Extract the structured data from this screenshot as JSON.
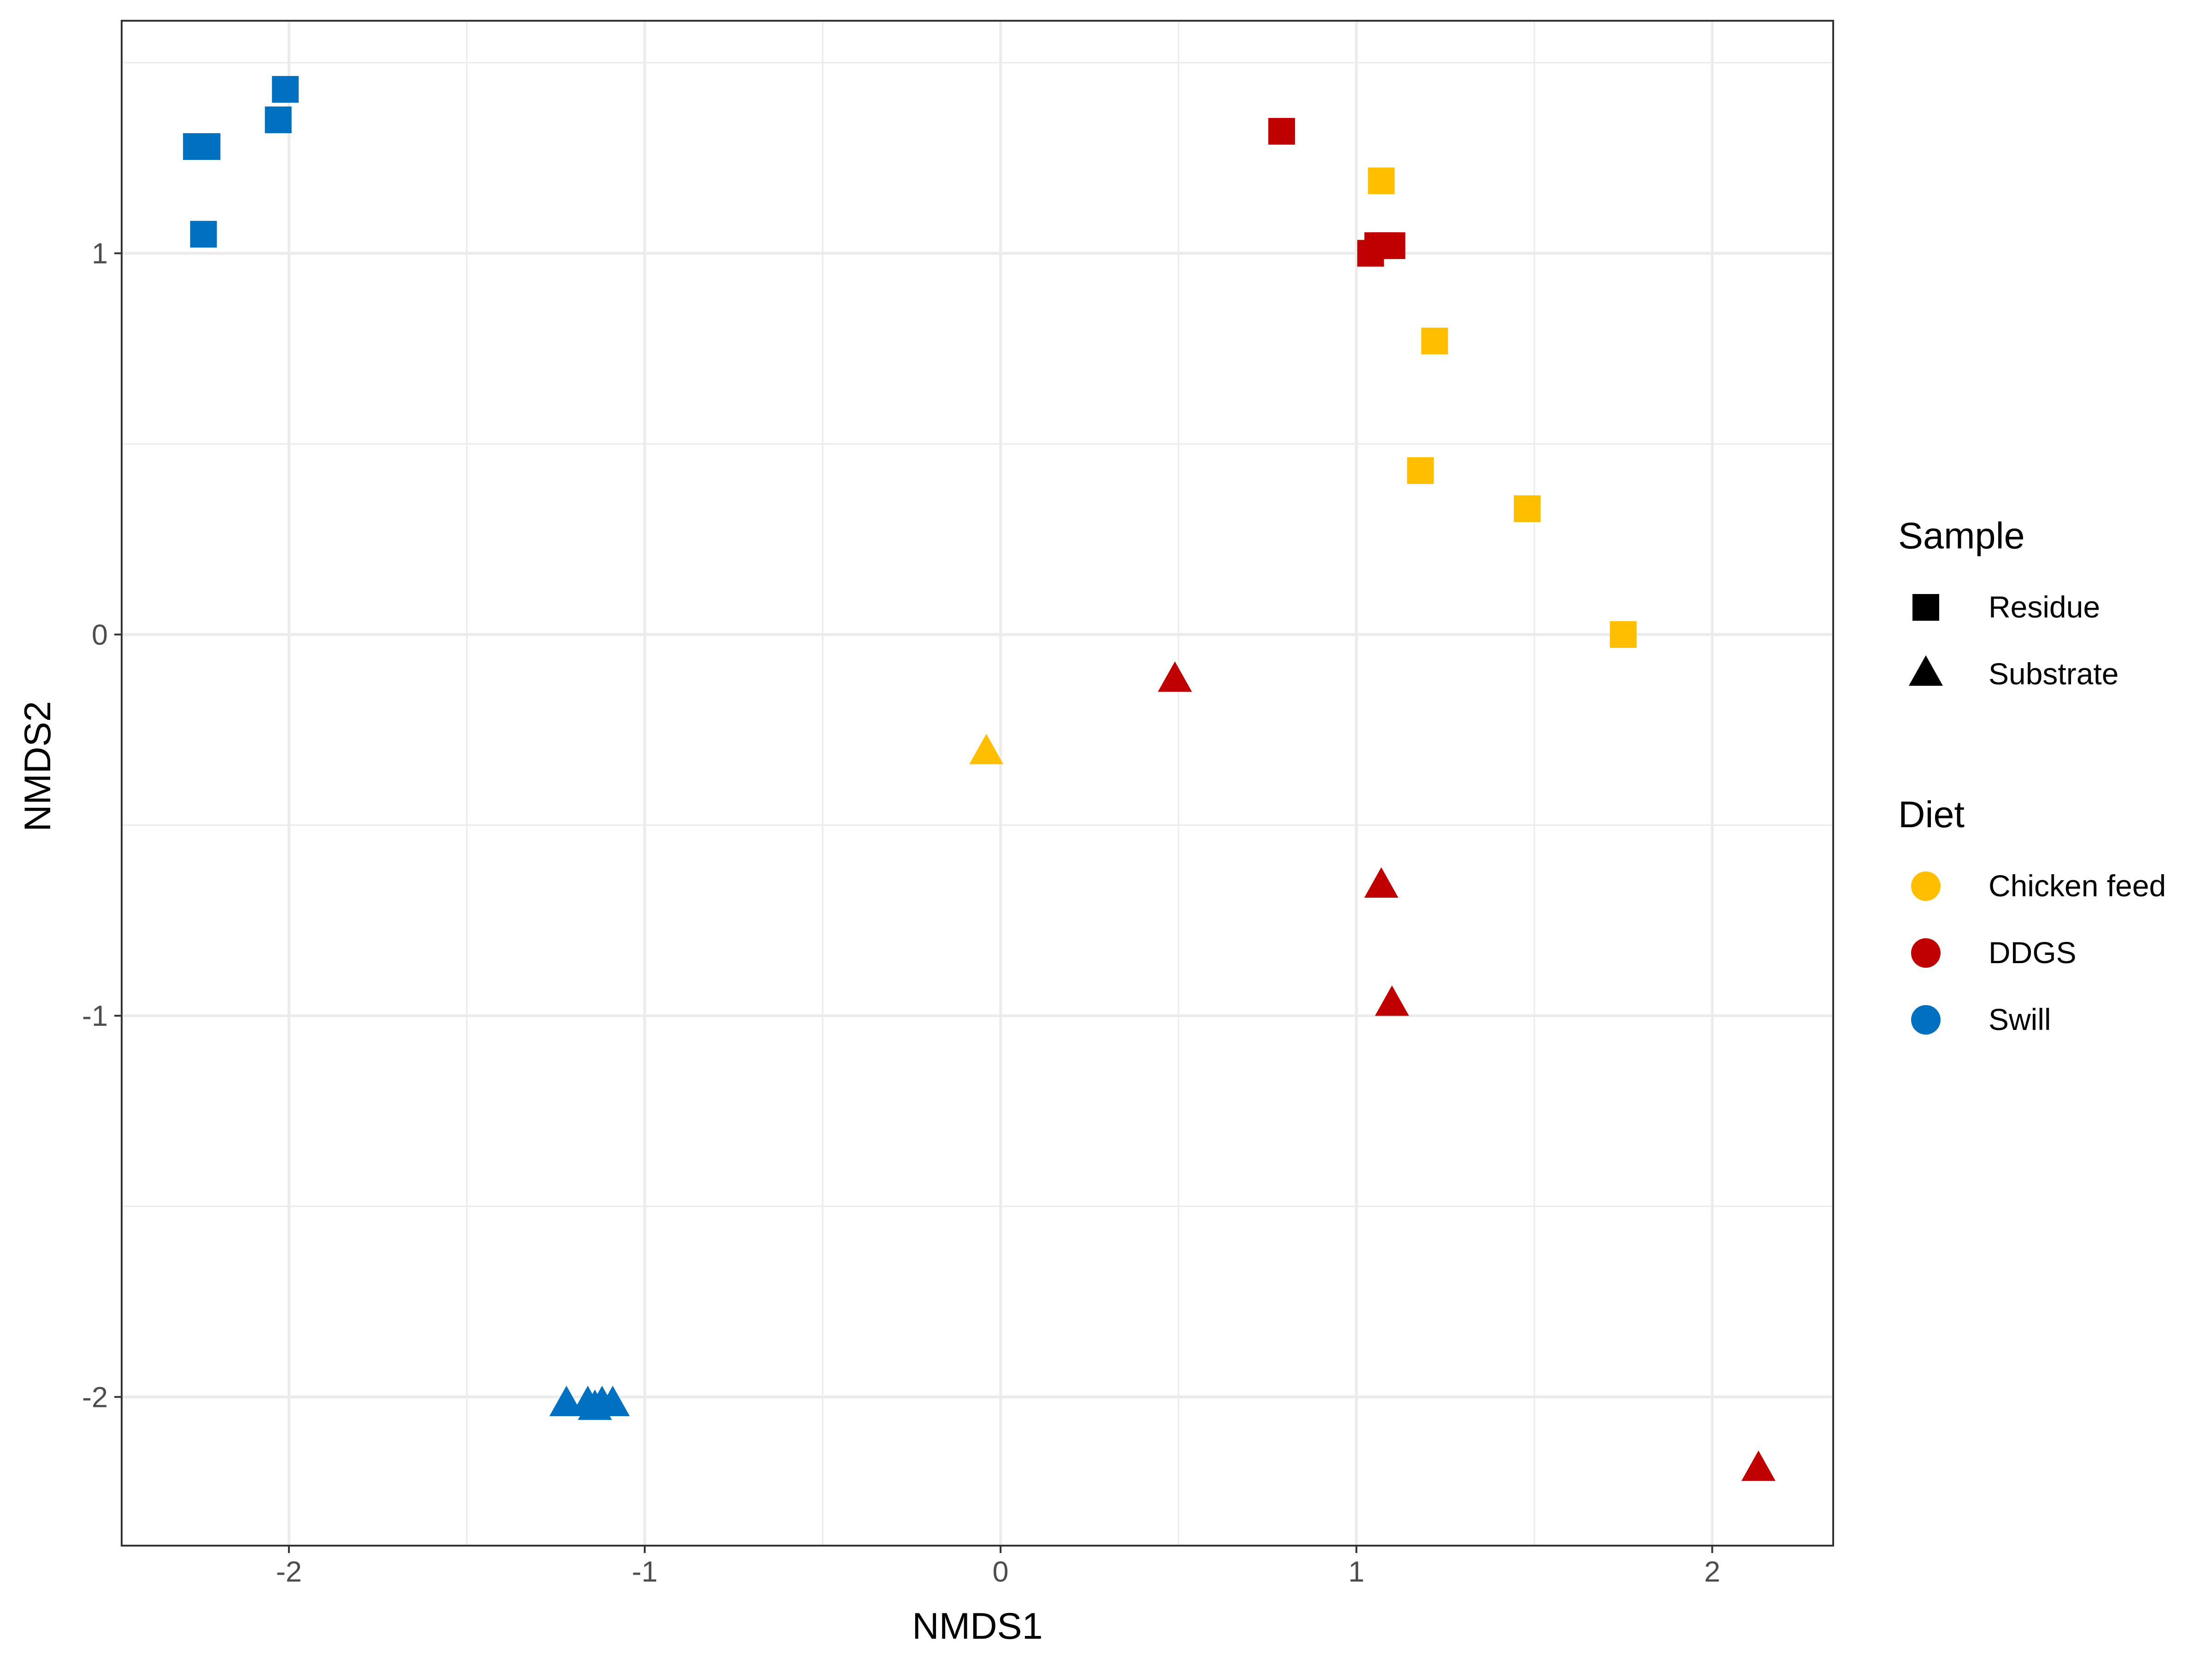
{
  "chart_data": {
    "type": "scatter",
    "xlabel": "NMDS1",
    "ylabel": "NMDS2",
    "xlim": [
      -2.47,
      2.34
    ],
    "ylim": [
      -2.39,
      1.61
    ],
    "x_ticks": [
      -2,
      -1,
      0,
      1,
      2
    ],
    "y_ticks": [
      -2,
      -1,
      0,
      1
    ],
    "x_tick_labels": [
      "-2",
      "-1",
      "0",
      "1",
      "2"
    ],
    "y_tick_labels": [
      "-2",
      "-1",
      "0",
      "1"
    ],
    "grid": true,
    "legend_position": "right",
    "legend": {
      "shape": {
        "title": "Sample",
        "entries": [
          {
            "label": "Residue",
            "shape": "square"
          },
          {
            "label": "Substrate",
            "shape": "triangle"
          }
        ]
      },
      "color": {
        "title": "Diet",
        "entries": [
          {
            "label": "Chicken feed",
            "color": "#FFBE00"
          },
          {
            "label": "DDGS",
            "color": "#C00000"
          },
          {
            "label": "Swill",
            "color": "#0070C0"
          }
        ]
      }
    },
    "series": [
      {
        "name": "Swill",
        "shape": "square",
        "color": "#0070C0",
        "points": [
          [
            -2.26,
            1.28
          ],
          [
            -2.23,
            1.28
          ],
          [
            -2.24,
            1.05
          ],
          [
            -2.03,
            1.35
          ],
          [
            -2.01,
            1.43
          ]
        ]
      },
      {
        "name": "Swill",
        "shape": "triangle",
        "color": "#0070C0",
        "points": [
          [
            -1.22,
            -2.02
          ],
          [
            -1.16,
            -2.02
          ],
          [
            -1.14,
            -2.03
          ],
          [
            -1.12,
            -2.02
          ],
          [
            -1.09,
            -2.02
          ]
        ]
      },
      {
        "name": "DDGS",
        "shape": "square",
        "color": "#C00000",
        "points": [
          [
            0.79,
            1.32
          ],
          [
            1.04,
            1.0
          ],
          [
            1.06,
            1.02
          ],
          [
            1.08,
            1.02
          ],
          [
            1.1,
            1.02
          ]
        ]
      },
      {
        "name": "DDGS",
        "shape": "triangle",
        "color": "#C00000",
        "points": [
          [
            0.49,
            -0.12
          ],
          [
            1.07,
            -0.66
          ],
          [
            1.1,
            -0.97
          ],
          [
            2.13,
            -2.19
          ]
        ]
      },
      {
        "name": "Chicken feed",
        "shape": "square",
        "color": "#FFBE00",
        "points": [
          [
            1.07,
            1.19
          ],
          [
            1.22,
            0.77
          ],
          [
            1.18,
            0.43
          ],
          [
            1.48,
            0.33
          ],
          [
            1.75,
            0.0
          ]
        ]
      },
      {
        "name": "Chicken feed",
        "shape": "triangle",
        "color": "#FFBE00",
        "points": [
          [
            -0.04,
            -0.31
          ]
        ]
      }
    ]
  }
}
